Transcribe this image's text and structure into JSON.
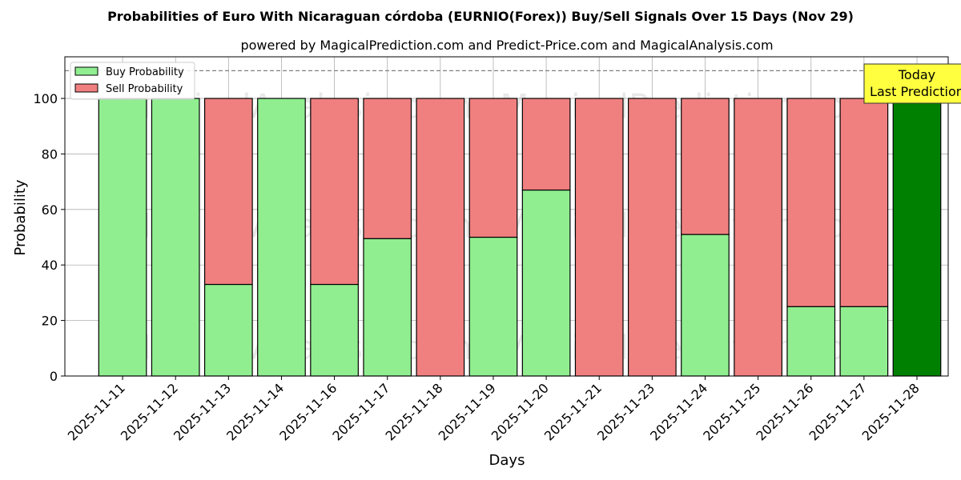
{
  "chart_data": {
    "type": "bar",
    "stacked": true,
    "title": "Probabilities of Euro With Nicaraguan córdoba (EURNIO(Forex)) Buy/Sell Signals Over 15 Days (Nov 29)",
    "subtitle": "powered by MagicalPrediction.com and Predict-Price.com and MagicalAnalysis.com",
    "xlabel": "Days",
    "ylabel": "Probability",
    "ylim": [
      0,
      115
    ],
    "yticks": [
      0,
      20,
      40,
      60,
      80,
      100
    ],
    "grid": true,
    "legend_position": "top-left",
    "reference_line": 110,
    "categories": [
      "2025-11-11",
      "2025-11-12",
      "2025-11-13",
      "2025-11-14",
      "2025-11-16",
      "2025-11-17",
      "2025-11-18",
      "2025-11-19",
      "2025-11-20",
      "2025-11-21",
      "2025-11-23",
      "2025-11-24",
      "2025-11-25",
      "2025-11-26",
      "2025-11-27",
      "2025-11-28"
    ],
    "series": [
      {
        "name": "Buy Probability",
        "color": "#90ee90",
        "values": [
          100,
          100,
          33,
          100,
          33,
          49.5,
          0,
          50,
          67,
          0,
          0,
          51,
          0,
          25,
          25,
          100
        ]
      },
      {
        "name": "Sell Probability",
        "color": "#f08080",
        "values": [
          0,
          0,
          67,
          0,
          67,
          50.5,
          100,
          50,
          33,
          100,
          100,
          49,
          100,
          75,
          75,
          0
        ]
      }
    ],
    "highlight": {
      "index": 15,
      "color": "#008000"
    },
    "annotation": {
      "line1": "Today",
      "line2": "Last Prediction",
      "color": "#ffff40"
    },
    "watermark": [
      "MagicalAnalysis.com",
      "MagicalPrediction.com"
    ]
  }
}
